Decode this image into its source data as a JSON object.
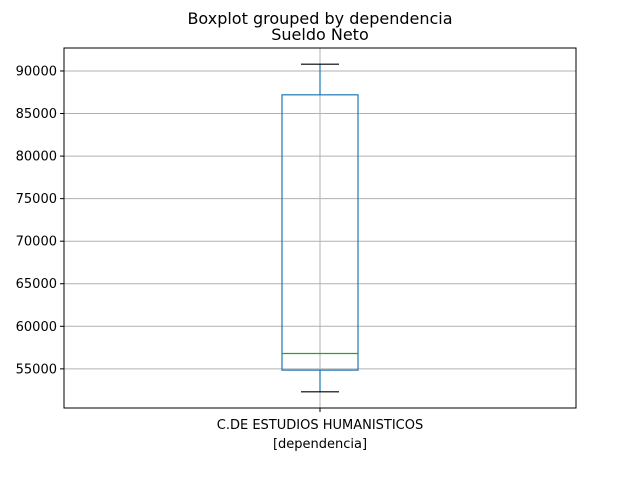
{
  "chart_data": {
    "type": "boxplot",
    "suptitle": "Boxplot grouped by dependencia",
    "title": "Sueldo Neto",
    "xlabel": "[dependencia]",
    "ylabel": "",
    "categories": [
      "C.DE ESTUDIOS HUMANISTICOS"
    ],
    "boxes": [
      {
        "category": "C.DE ESTUDIOS HUMANISTICOS",
        "whisker_low": 52300,
        "q1": 54850,
        "median": 56800,
        "q3": 87200,
        "whisker_high": 90800
      }
    ],
    "ylim": [
      50400,
      92700
    ],
    "yticks": [
      55000,
      60000,
      65000,
      70000,
      75000,
      80000,
      85000,
      90000
    ],
    "ytick_labels": [
      "55000",
      "60000",
      "65000",
      "70000",
      "75000",
      "80000",
      "85000",
      "90000"
    ],
    "grid": true,
    "colors": {
      "box": "#1f77b4",
      "whisker": "#1f77b4",
      "median": "#2ca02c",
      "grid": "#b0b0b0",
      "axes": "#000000"
    }
  }
}
